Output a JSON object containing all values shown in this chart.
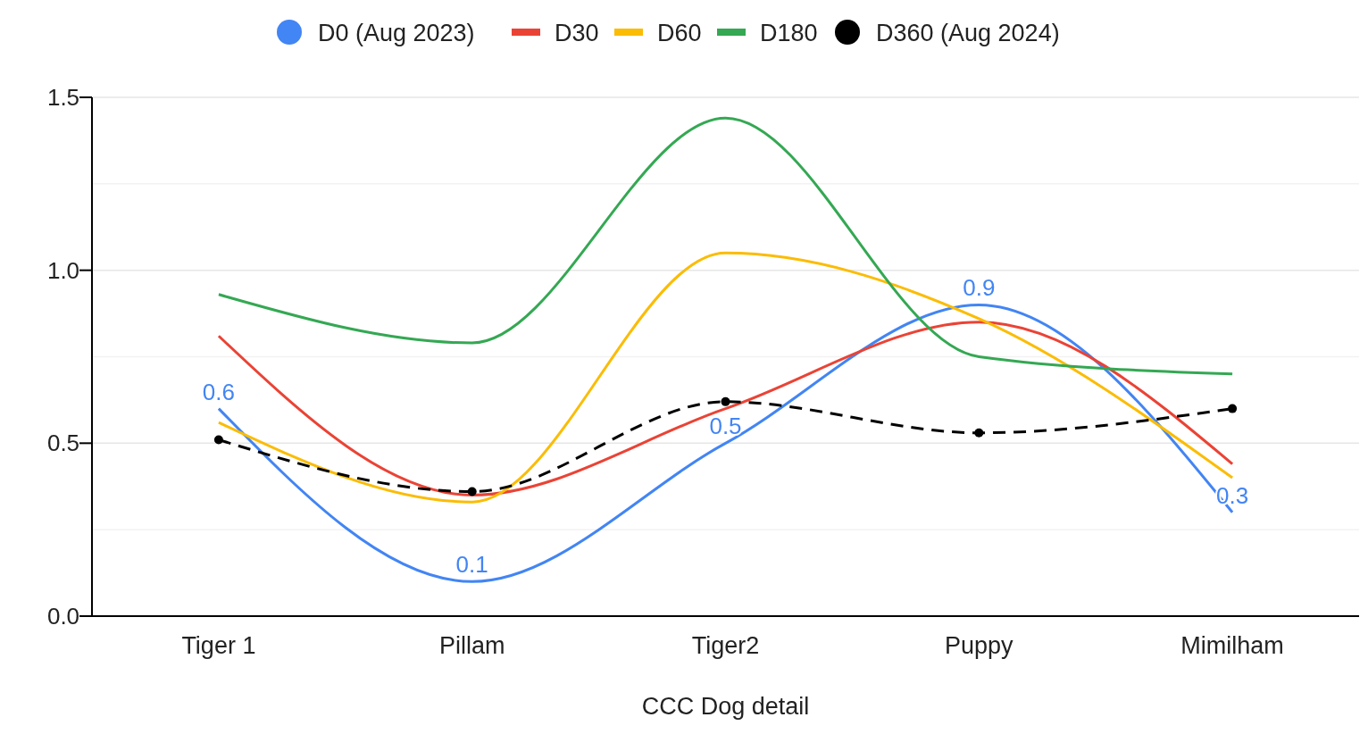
{
  "chart_data": {
    "type": "line",
    "xlabel": "CCC Dog detail",
    "categories": [
      "Tiger 1",
      "Pillam",
      "Tiger2",
      "Puppy",
      "Mimilham"
    ],
    "series": [
      {
        "name": "D0 (Aug 2023)",
        "color": "#4285f4",
        "values": [
          0.6,
          0.1,
          0.5,
          0.9,
          0.3
        ],
        "data_labels": true
      },
      {
        "name": "D30",
        "color": "#ea4335",
        "values": [
          0.81,
          0.35,
          0.6,
          0.85,
          0.44
        ]
      },
      {
        "name": "D60",
        "color": "#fbbc04",
        "values": [
          0.56,
          0.33,
          1.05,
          0.86,
          0.4
        ]
      },
      {
        "name": "D180",
        "color": "#34a853",
        "values": [
          0.93,
          0.79,
          1.44,
          0.75,
          0.7
        ]
      },
      {
        "name": "D360 (Aug 2024)",
        "color": "#000000",
        "values": [
          0.51,
          0.36,
          0.62,
          0.53,
          0.6
        ],
        "marker": "circle",
        "line_style": "dashed"
      }
    ],
    "ylim": [
      0,
      1.5
    ],
    "yticks": [
      {
        "value": 0,
        "label": "0.0"
      },
      {
        "value": 0.25,
        "label": null
      },
      {
        "value": 0.5,
        "label": "0.5"
      },
      {
        "value": 0.75,
        "label": null
      },
      {
        "value": 1,
        "label": "1.0"
      },
      {
        "value": 1.25,
        "label": null
      },
      1.5
    ],
    "grid": "y",
    "legend": "top"
  }
}
